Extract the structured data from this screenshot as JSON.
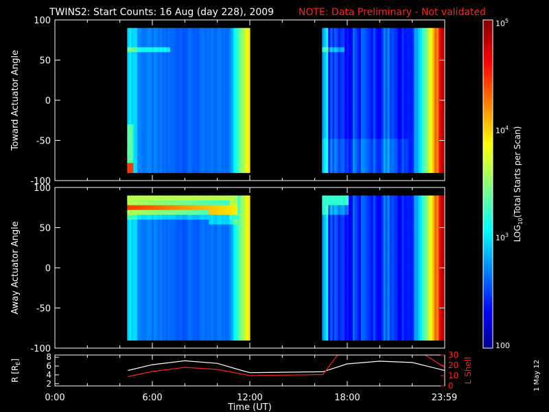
{
  "title": "TWINS2: Start Counts: 16 Aug (day 228), 2009",
  "note": "NOTE: Data Preliminary - Not validated",
  "date_stamp": "1 May 12",
  "colors": {
    "background": "#000000",
    "axes": "#ffffff",
    "note": "#ff2020",
    "lshell": "#ff2020",
    "r": "#ffffff"
  },
  "chart_data": [
    {
      "type": "heatmap",
      "ylabel": "Toward Actuator Angle",
      "ylim": [
        -100,
        100
      ],
      "yticks": [
        100,
        50,
        0,
        -50,
        -100
      ],
      "xlim": [
        0,
        24
      ],
      "data_extent_y": [
        -90,
        90
      ],
      "segments": [
        {
          "start_h": 4.45,
          "end_h": 12.0
        },
        {
          "start_h": 16.45,
          "end_h": 24.0
        }
      ],
      "features": [
        {
          "desc": "enhanced counts near +63 deg",
          "start_h": 4.5,
          "end_h": 7.0,
          "angle": 63
        },
        {
          "desc": "enhanced counts near +63 deg",
          "start_h": 16.5,
          "end_h": 18.0,
          "angle": 63
        }
      ]
    },
    {
      "type": "heatmap",
      "ylabel": "Away Actuator Angle",
      "ylim": [
        -100,
        100
      ],
      "yticks": [
        100,
        50,
        0,
        -50,
        -100
      ],
      "xlim": [
        0,
        24
      ],
      "data_extent_y": [
        -90,
        90
      ],
      "segments": [
        {
          "start_h": 4.45,
          "end_h": 12.0
        },
        {
          "start_h": 16.45,
          "end_h": 24.0
        }
      ],
      "features": [
        {
          "desc": "high counts near +75 deg",
          "start_h": 4.5,
          "end_h": 11.5,
          "angle": 75
        },
        {
          "desc": "high counts near +85 deg",
          "start_h": 16.5,
          "end_h": 18.0,
          "angle": 85
        }
      ]
    },
    {
      "type": "line",
      "xlabel": "Time (UT)",
      "xticks": [
        "0:00",
        "6:00",
        "12:00",
        "18:00",
        "23:59"
      ],
      "xtick_values": [
        0,
        6,
        12,
        18,
        23.98
      ],
      "ylabel_left": "R [R",
      "ylabel_left_sub": "E",
      "ylabel_left_end": "]",
      "ylim_left": [
        1.5,
        8.5
      ],
      "yticks_left": [
        2,
        4,
        6,
        8
      ],
      "ylabel_right": "L Shell",
      "ylim_right": [
        0,
        30
      ],
      "yticks_right": [
        0,
        10,
        20,
        30
      ],
      "series": [
        {
          "name": "R [RE]",
          "axis": "left",
          "x": [
            4.5,
            6,
            8,
            10,
            11.5,
            12,
            14,
            16.5,
            18,
            20,
            22,
            24
          ],
          "y": [
            5.0,
            6.3,
            7.2,
            6.6,
            5.0,
            4.5,
            4.6,
            4.7,
            6.5,
            7.1,
            6.8,
            5.0
          ]
        },
        {
          "name": "L Shell",
          "axis": "right",
          "x": [
            4.5,
            6,
            8,
            10,
            12,
            14,
            16.5,
            17.5,
            22.6,
            24
          ],
          "y": [
            9,
            14,
            18,
            16,
            10,
            10.5,
            11,
            32,
            32,
            18
          ]
        }
      ]
    }
  ],
  "colorbar": {
    "label": "LOG",
    "label_sub": "10",
    "label_end": "(Total Starts per Scan)",
    "tick_top": "10",
    "tick_top_exp": "5",
    "tick_mid": "10",
    "tick_mid_exp": "4",
    "tick_low": "10",
    "tick_low_exp": "3",
    "tick_bottom": "100",
    "range_log": [
      2,
      5
    ]
  }
}
